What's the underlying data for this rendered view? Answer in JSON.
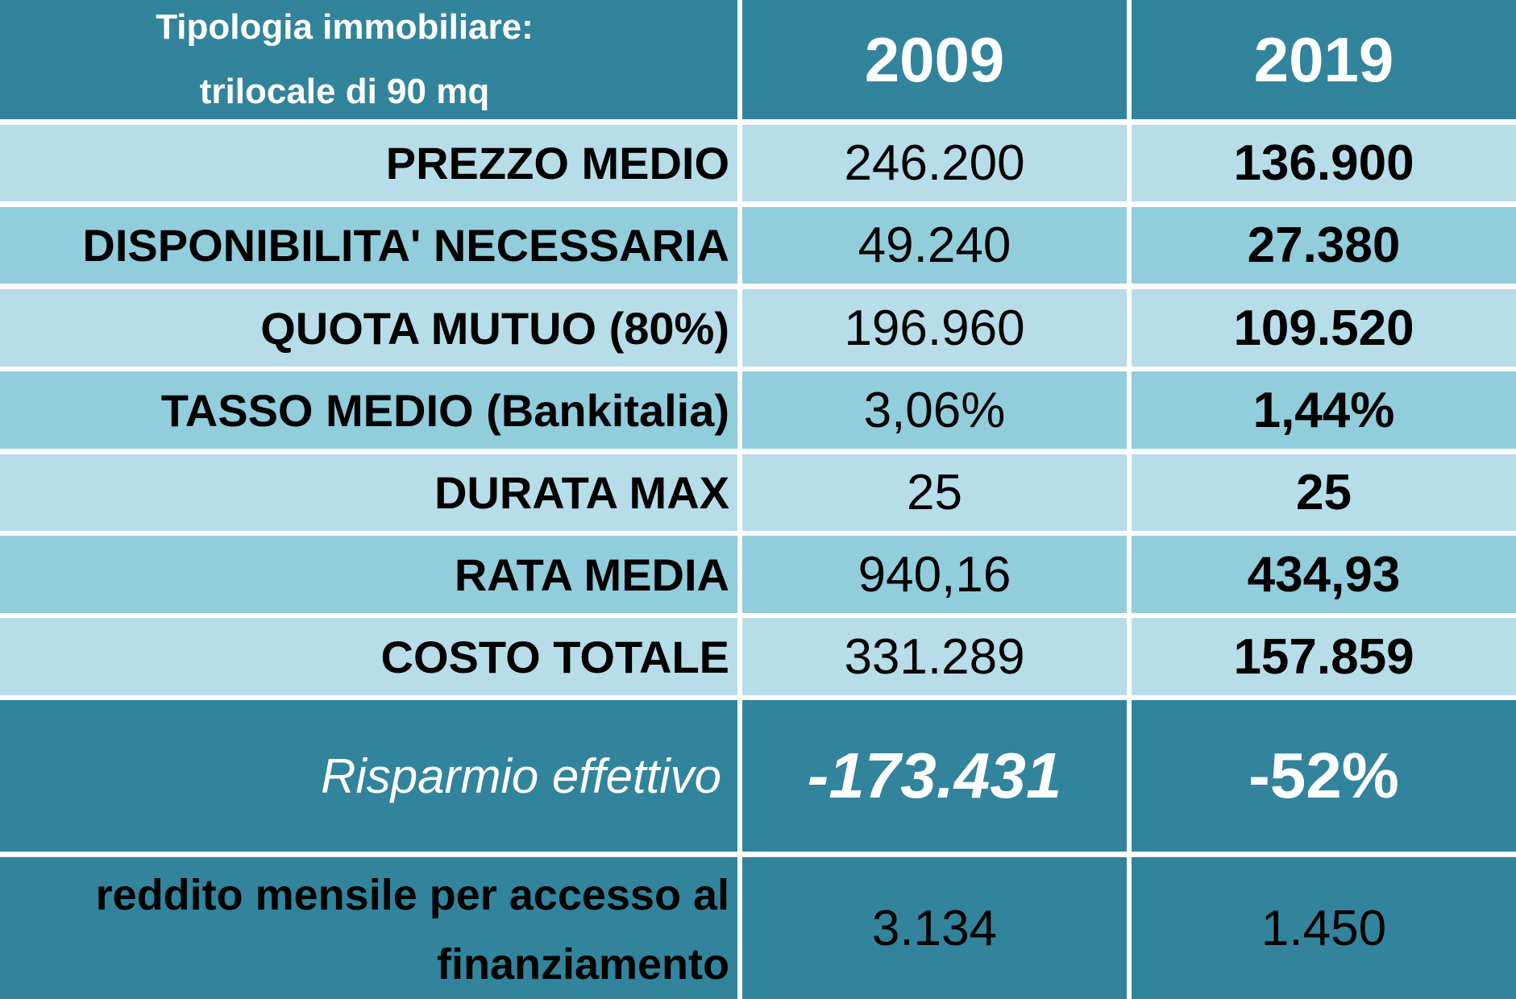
{
  "header": {
    "label_line1": "Tipologia immobiliare:",
    "label_line2": "trilocale di 90 mq",
    "year_a": "2009",
    "year_b": "2019"
  },
  "rows": [
    {
      "label": "PREZZO MEDIO",
      "v2009": "246.200",
      "v2019": "136.900",
      "shade": "light"
    },
    {
      "label": "DISPONIBILITA' NECESSARIA",
      "v2009": "49.240",
      "v2019": "27.380",
      "shade": "mid"
    },
    {
      "label": "QUOTA MUTUO (80%)",
      "v2009": "196.960",
      "v2019": "109.520",
      "shade": "light"
    },
    {
      "label": "TASSO MEDIO (Bankitalia)",
      "v2009": "3,06%",
      "v2019": "1,44%",
      "shade": "mid"
    },
    {
      "label": "DURATA MAX",
      "v2009": "25",
      "v2019": "25",
      "shade": "light"
    },
    {
      "label": "RATA MEDIA",
      "v2009": "940,16",
      "v2019": "434,93",
      "shade": "mid"
    },
    {
      "label": "COSTO TOTALE",
      "v2009": "331.289",
      "v2019": "157.859",
      "shade": "light"
    }
  ],
  "saving": {
    "label": "Risparmio effettivo",
    "value_abs": "-173.431",
    "value_pct": "-52%"
  },
  "income": {
    "label_line1": "reddito mensile per accesso al",
    "label_line2": "finanziamento",
    "v2009": "3.134",
    "v2019": "1.450"
  },
  "colors": {
    "header": "#31849b",
    "row_light": "#b7dde8",
    "row_mid": "#92cddc"
  },
  "chart_data": {
    "type": "table",
    "columns": [
      "Tipologia immobiliare: trilocale di 90 mq",
      "2009",
      "2019"
    ],
    "rows": [
      [
        "PREZZO MEDIO",
        "246.200",
        "136.900"
      ],
      [
        "DISPONIBILITA' NECESSARIA",
        "49.240",
        "27.380"
      ],
      [
        "QUOTA MUTUO (80%)",
        "196.960",
        "109.520"
      ],
      [
        "TASSO MEDIO (Bankitalia)",
        "3,06%",
        "1,44%"
      ],
      [
        "DURATA MAX",
        "25",
        "25"
      ],
      [
        "RATA MEDIA",
        "940,16",
        "434,93"
      ],
      [
        "COSTO TOTALE",
        "331.289",
        "157.859"
      ],
      [
        "Risparmio effettivo",
        "-173.431",
        "-52%"
      ],
      [
        "reddito mensile per accesso al finanziamento",
        "3.134",
        "1.450"
      ]
    ]
  }
}
